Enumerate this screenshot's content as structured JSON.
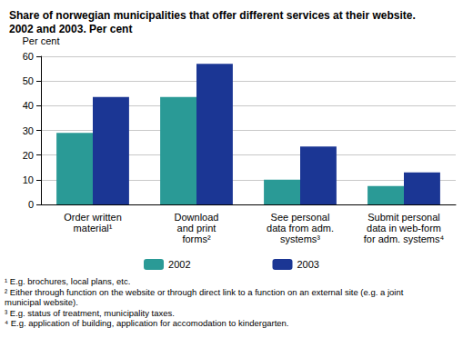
{
  "chart_data": {
    "type": "bar",
    "title": "Share of norwegian municipalities that offer different services at their website.\n2002 and 2003. Per cent",
    "y_label": "Per cent",
    "categories": [
      "Order written\nmaterial¹",
      "Download\nand print\nforms²",
      "See personal\ndata from adm.\nsystems³",
      "Submit personal\ndata in web-form\nfor adm. systems⁴"
    ],
    "series": [
      {
        "name": "2002",
        "color": "#2a9a96",
        "values": [
          29,
          43.5,
          10,
          7.5
        ]
      },
      {
        "name": "2003",
        "color": "#1b3694",
        "values": [
          43.5,
          57,
          23.5,
          13
        ]
      }
    ],
    "ylim": [
      0,
      60
    ],
    "yticks": [
      0,
      10,
      20,
      30,
      40,
      50,
      60
    ],
    "grid": true,
    "legend": "bottom",
    "footnotes": [
      "¹ E.g. brochures, local plans, etc.",
      "² Either through function on the website or through direct link to a function on an external site (e.g. a joint\nmunicipal website).",
      "³ E.g. status of treatment, municipality taxes.",
      "⁴ E.g. application of building, application for accomodation to kindergarten."
    ]
  }
}
